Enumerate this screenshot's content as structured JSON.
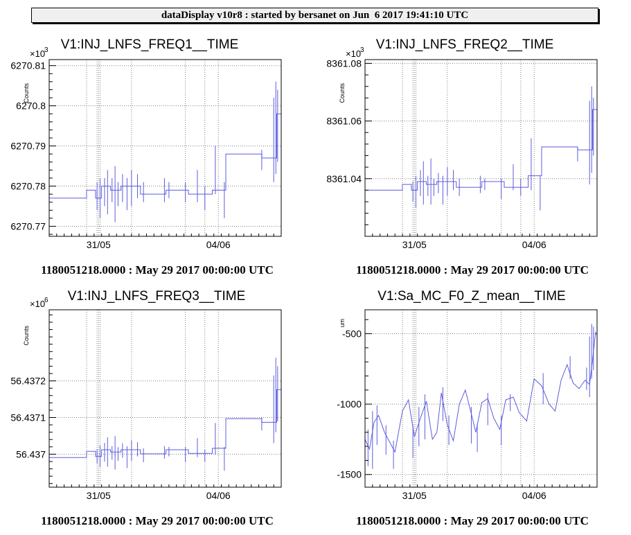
{
  "header": {
    "title": "dataDisplay v10r8 : started by bersanet on Jun  6 2017 19:41:10 UTC"
  },
  "colors": {
    "trace": "#5b5bdc",
    "axis": "#000000",
    "grid": "#7f7f7f",
    "header_bg": "#f0f0f0"
  },
  "chart_data": [
    {
      "type": "line",
      "title": "V1:INJ_LNFS_FREQ1__TIME",
      "ylabel": "Counts",
      "exponent": "×10",
      "exponent_power": "3",
      "xlabel": "1180051218.0000 : May 29 2017 00:00:00 UTC",
      "xlim_days": [
        29.35,
        37.1
      ],
      "ylim": [
        6270.7675,
        6270.8115
      ],
      "yticks": [
        6270.77,
        6270.78,
        6270.79,
        6270.8,
        6270.81
      ],
      "ytick_labels": [
        "6270.77",
        "6270.78",
        "6270.79",
        "6270.8",
        "6270.81"
      ],
      "xticks": [
        "31/05",
        "04/06"
      ],
      "grid": true,
      "series": [
        {
          "x_days": [
            29.35,
            30.6,
            30.6,
            30.9,
            30.9,
            31.1,
            31.1,
            31.4,
            31.4,
            31.75,
            31.75,
            32.4,
            32.4,
            33.25,
            33.25,
            34.0,
            34.0,
            34.8,
            34.8,
            35.25,
            35.25,
            36.45,
            36.45,
            36.95,
            36.95,
            37.1
          ],
          "values": [
            6270.777,
            6270.777,
            6270.779,
            6270.779,
            6270.777,
            6270.777,
            6270.78,
            6270.78,
            6270.779,
            6270.779,
            6270.78,
            6270.78,
            6270.778,
            6270.778,
            6270.779,
            6270.779,
            6270.778,
            6270.778,
            6270.779,
            6270.779,
            6270.788,
            6270.788,
            6270.787,
            6270.787,
            6270.798,
            6270.798
          ],
          "spikes": [
            {
              "x_day": 30.95,
              "low": 6270.774,
              "high": 6270.781
            },
            {
              "x_day": 31.05,
              "low": 6270.772,
              "high": 6270.782
            },
            {
              "x_day": 31.2,
              "low": 6270.775,
              "high": 6270.782
            },
            {
              "x_day": 31.3,
              "low": 6270.773,
              "high": 6270.784
            },
            {
              "x_day": 31.45,
              "low": 6270.776,
              "high": 6270.782
            },
            {
              "x_day": 31.55,
              "low": 6270.771,
              "high": 6270.785
            },
            {
              "x_day": 31.65,
              "low": 6270.775,
              "high": 6270.781
            },
            {
              "x_day": 31.8,
              "low": 6270.776,
              "high": 6270.783
            },
            {
              "x_day": 31.95,
              "low": 6270.774,
              "high": 6270.782
            },
            {
              "x_day": 32.1,
              "low": 6270.775,
              "high": 6270.784
            },
            {
              "x_day": 32.3,
              "low": 6270.777,
              "high": 6270.783
            },
            {
              "x_day": 32.5,
              "low": 6270.776,
              "high": 6270.781
            },
            {
              "x_day": 33.2,
              "low": 6270.776,
              "high": 6270.782
            },
            {
              "x_day": 33.35,
              "low": 6270.777,
              "high": 6270.781
            },
            {
              "x_day": 33.9,
              "low": 6270.776,
              "high": 6270.781
            },
            {
              "x_day": 34.3,
              "low": 6270.776,
              "high": 6270.784
            },
            {
              "x_day": 34.55,
              "low": 6270.774,
              "high": 6270.78
            },
            {
              "x_day": 34.9,
              "low": 6270.778,
              "high": 6270.79
            },
            {
              "x_day": 35.2,
              "low": 6270.772,
              "high": 6270.781
            },
            {
              "x_day": 36.45,
              "low": 6270.784,
              "high": 6270.789
            },
            {
              "x_day": 36.85,
              "low": 6270.781,
              "high": 6270.802
            },
            {
              "x_day": 36.92,
              "low": 6270.783,
              "high": 6270.806
            },
            {
              "x_day": 36.98,
              "low": 6270.786,
              "high": 6270.804
            }
          ]
        }
      ]
    },
    {
      "type": "line",
      "title": "V1:INJ_LNFS_FREQ2__TIME",
      "ylabel": "Counts",
      "exponent": "×10",
      "exponent_power": "3",
      "xlabel": "1180051218.0000 : May 29 2017 00:00:00 UTC",
      "xlim_days": [
        29.35,
        37.1
      ],
      "ylim": [
        8361.02,
        8361.0813
      ],
      "yticks": [
        8361.04,
        8361.06,
        8361.08
      ],
      "ytick_labels": [
        "8361.04",
        "8361.06",
        "8361.08"
      ],
      "xticks": [
        "31/05",
        "04/06"
      ],
      "grid": true,
      "series": [
        {
          "x_days": [
            29.35,
            30.6,
            30.6,
            30.9,
            30.9,
            31.1,
            31.1,
            31.4,
            31.4,
            31.75,
            31.75,
            32.4,
            32.4,
            33.25,
            33.25,
            34.0,
            34.0,
            34.8,
            34.8,
            35.25,
            35.25,
            36.45,
            36.45,
            36.95,
            36.95,
            37.1
          ],
          "values": [
            8361.036,
            8361.036,
            8361.038,
            8361.038,
            8361.036,
            8361.036,
            8361.039,
            8361.039,
            8361.038,
            8361.038,
            8361.039,
            8361.039,
            8361.037,
            8361.037,
            8361.039,
            8361.039,
            8361.037,
            8361.037,
            8361.041,
            8361.041,
            8361.051,
            8361.051,
            8361.05,
            8361.05,
            8361.064,
            8361.064
          ],
          "spikes": [
            {
              "x_day": 30.95,
              "low": 8361.032,
              "high": 8361.039
            },
            {
              "x_day": 31.05,
              "low": 8361.03,
              "high": 8361.041
            },
            {
              "x_day": 31.2,
              "low": 8361.034,
              "high": 8361.043
            },
            {
              "x_day": 31.3,
              "low": 8361.031,
              "high": 8361.046
            },
            {
              "x_day": 31.45,
              "low": 8361.034,
              "high": 8361.041
            },
            {
              "x_day": 31.55,
              "low": 8361.031,
              "high": 8361.047
            },
            {
              "x_day": 31.65,
              "low": 8361.034,
              "high": 8361.04
            },
            {
              "x_day": 31.8,
              "low": 8361.035,
              "high": 8361.042
            },
            {
              "x_day": 31.95,
              "low": 8361.031,
              "high": 8361.041
            },
            {
              "x_day": 32.1,
              "low": 8361.034,
              "high": 8361.044
            },
            {
              "x_day": 32.3,
              "low": 8361.036,
              "high": 8361.043
            },
            {
              "x_day": 32.5,
              "low": 8361.034,
              "high": 8361.04
            },
            {
              "x_day": 33.2,
              "low": 8361.035,
              "high": 8361.041
            },
            {
              "x_day": 33.35,
              "low": 8361.036,
              "high": 8361.04
            },
            {
              "x_day": 33.9,
              "low": 8361.033,
              "high": 8361.04
            },
            {
              "x_day": 34.3,
              "low": 8361.036,
              "high": 8361.045
            },
            {
              "x_day": 34.55,
              "low": 8361.034,
              "high": 8361.04
            },
            {
              "x_day": 34.9,
              "low": 8361.036,
              "high": 8361.054
            },
            {
              "x_day": 35.2,
              "low": 8361.029,
              "high": 8361.041
            },
            {
              "x_day": 36.45,
              "low": 8361.046,
              "high": 8361.051
            },
            {
              "x_day": 36.85,
              "low": 8361.038,
              "high": 8361.067
            },
            {
              "x_day": 36.92,
              "low": 8361.042,
              "high": 8361.072
            },
            {
              "x_day": 36.98,
              "low": 8361.048,
              "high": 8361.068
            }
          ]
        }
      ]
    },
    {
      "type": "line",
      "title": "V1:INJ_LNFS_FREQ3__TIME",
      "ylabel": "Counts",
      "exponent": "×10",
      "exponent_power": "6",
      "xlabel": "1180051218.0000 : May 29 2017 00:00:00 UTC",
      "xlim_days": [
        29.35,
        37.1
      ],
      "ylim": [
        56.43691,
        56.437394
      ],
      "yticks": [
        56.437,
        56.4371,
        56.4372
      ],
      "ytick_labels": [
        "56.437",
        "56.4371",
        "56.4372"
      ],
      "xticks": [
        "31/05",
        "04/06"
      ],
      "grid": true,
      "series": [
        {
          "x_days": [
            29.35,
            30.6,
            30.6,
            30.9,
            30.9,
            31.1,
            31.1,
            31.4,
            31.4,
            31.75,
            31.75,
            32.4,
            32.4,
            33.25,
            33.25,
            34.0,
            34.0,
            34.8,
            34.8,
            35.25,
            35.25,
            36.45,
            36.45,
            36.95,
            36.95,
            37.1
          ],
          "values": [
            56.436991,
            56.436991,
            56.437008,
            56.437008,
            56.436994,
            56.436994,
            56.437012,
            56.437012,
            56.437006,
            56.437006,
            56.437012,
            56.437012,
            56.437001,
            56.437001,
            56.437012,
            56.437012,
            56.437002,
            56.437002,
            56.437016,
            56.437016,
            56.437097,
            56.437097,
            56.437087,
            56.437087,
            56.437176,
            56.437176
          ],
          "spikes": [
            {
              "x_day": 30.95,
              "low": 56.436975,
              "high": 56.437014
            },
            {
              "x_day": 31.05,
              "low": 56.436965,
              "high": 56.437024
            },
            {
              "x_day": 31.2,
              "low": 56.43698,
              "high": 56.437031
            },
            {
              "x_day": 31.3,
              "low": 56.436966,
              "high": 56.437046
            },
            {
              "x_day": 31.45,
              "low": 56.436985,
              "high": 56.437022
            },
            {
              "x_day": 31.55,
              "low": 56.436958,
              "high": 56.43705
            },
            {
              "x_day": 31.65,
              "low": 56.436982,
              "high": 56.437019
            },
            {
              "x_day": 31.8,
              "low": 56.43699,
              "high": 56.43703
            },
            {
              "x_day": 31.95,
              "low": 56.436962,
              "high": 56.437022
            },
            {
              "x_day": 32.1,
              "low": 56.436982,
              "high": 56.437038
            },
            {
              "x_day": 32.3,
              "low": 56.436994,
              "high": 56.437033
            },
            {
              "x_day": 32.5,
              "low": 56.436978,
              "high": 56.437016
            },
            {
              "x_day": 33.2,
              "low": 56.436988,
              "high": 56.437022
            },
            {
              "x_day": 33.35,
              "low": 56.436994,
              "high": 56.43702
            },
            {
              "x_day": 33.9,
              "low": 56.436978,
              "high": 56.43702
            },
            {
              "x_day": 34.3,
              "low": 56.436992,
              "high": 56.437044
            },
            {
              "x_day": 34.55,
              "low": 56.43698,
              "high": 56.437012
            },
            {
              "x_day": 34.9,
              "low": 56.436999,
              "high": 56.437085
            },
            {
              "x_day": 35.2,
              "low": 56.436955,
              "high": 56.43702
            },
            {
              "x_day": 36.45,
              "low": 56.437065,
              "high": 56.4371
            },
            {
              "x_day": 36.85,
              "low": 56.43703,
              "high": 56.437215
            },
            {
              "x_day": 36.92,
              "low": 56.43706,
              "high": 56.437263
            },
            {
              "x_day": 36.98,
              "low": 56.43709,
              "high": 56.43724
            }
          ]
        }
      ]
    },
    {
      "type": "line",
      "title": "V1:Sa_MC_F0_Z_mean__TIME",
      "ylabel": "um",
      "exponent": "",
      "exponent_power": "",
      "xlabel": "1180051218.0000 : May 29 2017 00:00:00 UTC",
      "xlim_days": [
        29.35,
        37.1
      ],
      "ylim": [
        -1590,
        -330
      ],
      "yticks": [
        -1500,
        -1000,
        -500
      ],
      "ytick_labels": [
        "-1500",
        "-1000",
        "-500"
      ],
      "xticks": [
        "31/05",
        "04/06"
      ],
      "grid": true,
      "series": [
        {
          "x_days": [
            29.35,
            29.5,
            29.65,
            29.8,
            30.0,
            30.2,
            30.35,
            30.6,
            30.8,
            31.0,
            31.2,
            31.4,
            31.6,
            31.75,
            31.9,
            32.1,
            32.3,
            32.5,
            32.7,
            32.9,
            33.05,
            33.25,
            33.45,
            33.65,
            33.85,
            34.05,
            34.3,
            34.5,
            34.75,
            35.0,
            35.25,
            35.5,
            35.7,
            35.9,
            36.1,
            36.3,
            36.5,
            36.7,
            36.85,
            36.95,
            37.05,
            37.1
          ],
          "values": [
            -1250,
            -1320,
            -1130,
            -1080,
            -1200,
            -1280,
            -1340,
            -1050,
            -970,
            -1230,
            -1100,
            -980,
            -1250,
            -1200,
            -920,
            -1150,
            -1260,
            -1000,
            -900,
            -1070,
            -1200,
            -990,
            -960,
            -1100,
            -1180,
            -970,
            -950,
            -1060,
            -1120,
            -820,
            -870,
            -1000,
            -1050,
            -830,
            -720,
            -850,
            -890,
            -830,
            -860,
            -690,
            -490,
            -510
          ],
          "spikes": [
            {
              "x_day": 29.45,
              "low": -1440,
              "high": -1180
            },
            {
              "x_day": 29.6,
              "low": -1460,
              "high": -1050
            },
            {
              "x_day": 29.75,
              "low": -1290,
              "high": -1010
            },
            {
              "x_day": 30.05,
              "low": -1360,
              "high": -1150
            },
            {
              "x_day": 30.3,
              "low": -1460,
              "high": -1260
            },
            {
              "x_day": 30.95,
              "low": -1380,
              "high": -1150
            },
            {
              "x_day": 31.15,
              "low": -1300,
              "high": -1020
            },
            {
              "x_day": 31.35,
              "low": -1250,
              "high": -930
            },
            {
              "x_day": 31.95,
              "low": -1120,
              "high": -880
            },
            {
              "x_day": 32.15,
              "low": -1290,
              "high": -1080
            },
            {
              "x_day": 32.9,
              "low": -1280,
              "high": -1020
            },
            {
              "x_day": 33.1,
              "low": -1340,
              "high": -1140
            },
            {
              "x_day": 33.45,
              "low": -1150,
              "high": -920
            },
            {
              "x_day": 33.9,
              "low": -1290,
              "high": -1080
            },
            {
              "x_day": 34.2,
              "low": -1050,
              "high": -930
            },
            {
              "x_day": 35.3,
              "low": -1000,
              "high": -780
            },
            {
              "x_day": 36.2,
              "low": -820,
              "high": -660
            },
            {
              "x_day": 36.75,
              "low": -900,
              "high": -740
            },
            {
              "x_day": 36.85,
              "low": -950,
              "high": -520
            },
            {
              "x_day": 36.92,
              "low": -820,
              "high": -430
            },
            {
              "x_day": 36.98,
              "low": -760,
              "high": -450
            }
          ]
        }
      ]
    }
  ]
}
